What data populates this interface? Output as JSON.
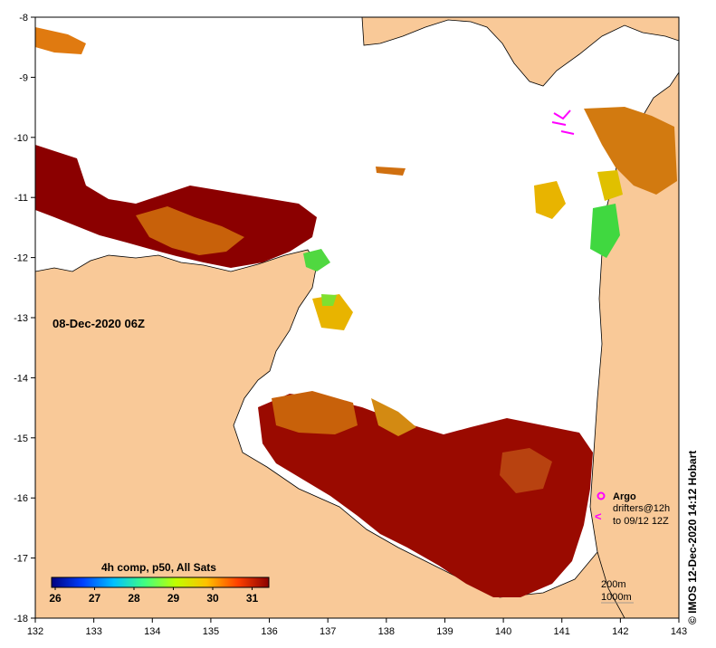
{
  "map": {
    "lon_min": 132,
    "lon_max": 143,
    "lat_min": -18,
    "lat_max": -8,
    "x_ticks": [
      "132",
      "133",
      "134",
      "135",
      "136",
      "137",
      "138",
      "139",
      "140",
      "141",
      "142",
      "143"
    ],
    "y_ticks": [
      "-8",
      "-9",
      "-10",
      "-11",
      "-12",
      "-13",
      "-14",
      "-15",
      "-16",
      "-17",
      "-18"
    ],
    "date_label": "08-Dec-2020 06Z",
    "land_color": "#f9c998",
    "ocean_nodata_color": "#ffffff"
  },
  "legend": {
    "title": "4h comp, p50, All Sats",
    "labels": [
      "26",
      "27",
      "28",
      "29",
      "30",
      "31"
    ],
    "colors": [
      "#00007f",
      "#0040ff",
      "#00c0ff",
      "#40ff80",
      "#c0ff00",
      "#ffc000",
      "#ff4000",
      "#8b0000"
    ]
  },
  "argo": {
    "label": "Argo",
    "drifters_label": "drifters@12h",
    "to_label": "to 09/12 12Z",
    "symbol_color": "#ff00ff",
    "drifter_symbol": "<"
  },
  "contours": {
    "label_200m": "200m",
    "label_1000m": "1000m"
  },
  "credit": {
    "symbol": "©",
    "text": "IMOS 12-Dec-2020 14:12 Hobart"
  }
}
